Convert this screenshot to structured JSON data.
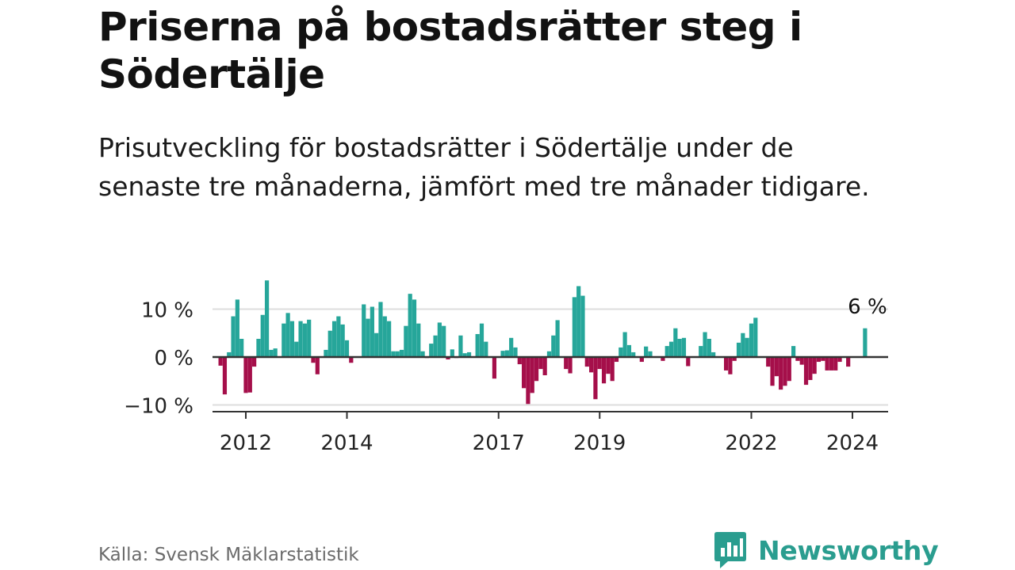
{
  "title": "Priserna på bostadsrätter steg i Södertälje",
  "subtitle": "Prisutveckling för bostadsrätter i Södertälje under de senaste tre månaderna, jämfört med tre månader tidigare.",
  "source": "Källa: Svensk Mäklarstatistik",
  "brand": {
    "name": "Newsworthy",
    "icon": "newsworthy-logo-icon"
  },
  "colors": {
    "positive": "#26a69a",
    "negative": "#a50f4a",
    "zero_line": "#333333",
    "grid": "#dddddd"
  },
  "chart_data": {
    "type": "bar",
    "title": "Priserna på bostadsrätter steg i Södertälje",
    "xlabel": "",
    "ylabel": "",
    "ylim": [
      -11,
      17
    ],
    "y_ticks": [
      10,
      0,
      -10
    ],
    "y_tick_labels": [
      "10 %",
      "0 %",
      "−10 %"
    ],
    "x_ticks": [
      2012,
      2014,
      2017,
      2019,
      2022,
      2024
    ],
    "x_tick_labels": [
      "2012",
      "2014",
      "2017",
      "2019",
      "2022",
      "2024"
    ],
    "x_start": 2011.5,
    "x_step": 0.08333,
    "grid": true,
    "annotation": {
      "label": "6 %",
      "index": 153
    },
    "values": [
      -1.8,
      -7.8,
      1.0,
      8.5,
      12.0,
      3.8,
      -7.5,
      -7.4,
      -2.0,
      3.8,
      8.8,
      16.0,
      1.5,
      1.8,
      0,
      7.0,
      9.2,
      7.5,
      3.2,
      7.5,
      7.0,
      7.8,
      -1.2,
      -3.6,
      0,
      1.5,
      5.5,
      7.5,
      8.5,
      6.8,
      3.5,
      -1.2,
      0,
      0,
      11.0,
      8.0,
      10.5,
      5.0,
      11.5,
      8.5,
      7.5,
      1.2,
      1.2,
      1.5,
      6.5,
      13.2,
      12.0,
      7.0,
      1.2,
      -0.2,
      2.8,
      4.5,
      7.2,
      6.5,
      -0.5,
      1.6,
      -0.2,
      4.5,
      0.8,
      1.0,
      0,
      4.8,
      7.0,
      3.2,
      0,
      -4.5,
      0,
      1.3,
      1.4,
      4.0,
      2.0,
      -1.5,
      -6.5,
      -9.8,
      -7.5,
      -5.0,
      -2.5,
      -3.8,
      1.2,
      4.5,
      7.7,
      0,
      -2.5,
      -3.4,
      12.5,
      14.8,
      12.8,
      -2.0,
      -3.2,
      -8.8,
      -2.5,
      -5.5,
      -3.5,
      -5.0,
      -1.0,
      2.0,
      5.2,
      2.5,
      1.0,
      0,
      -1.0,
      2.2,
      1.2,
      0,
      0,
      -0.8,
      2.3,
      3.2,
      6.0,
      3.8,
      4.0,
      -1.9,
      0,
      0,
      2.3,
      5.2,
      3.8,
      1.0,
      0,
      0,
      -2.8,
      -3.6,
      -0.8,
      3.0,
      5.0,
      4.0,
      7.0,
      8.2,
      0,
      0,
      -2.0,
      -6.0,
      -4.0,
      -6.8,
      -6.0,
      -5.0,
      2.3,
      -0.8,
      -1.6,
      -5.8,
      -4.8,
      -3.5,
      -1.0,
      -0.8,
      -2.8,
      -2.8,
      -2.8,
      -1.0,
      0,
      -2.0,
      0,
      0,
      0,
      6.0
    ]
  }
}
